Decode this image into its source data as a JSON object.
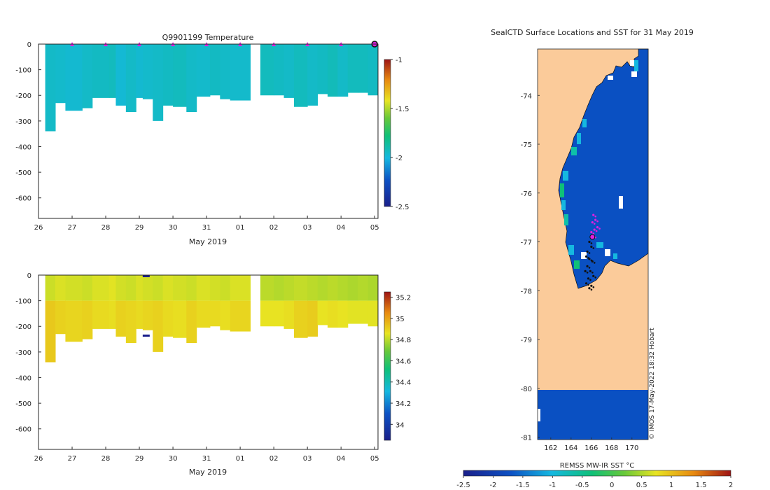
{
  "chart_data": [
    {
      "type": "heatmap",
      "title": "Q9901199  Temperature",
      "xlabel": "May 2019",
      "ylabel": "",
      "xlim": [
        26,
        36.1
      ],
      "ylim": [
        -680,
        0
      ],
      "xtick_labels": [
        "26",
        "27",
        "28",
        "29",
        "30",
        "31",
        "01",
        "02",
        "03",
        "04",
        "05"
      ],
      "ytick_values": [
        0,
        -100,
        -200,
        -300,
        -400,
        -500,
        -600
      ],
      "ytick_labels": [
        "0",
        "-100",
        "-200",
        "-300",
        "-400",
        "-500",
        "-600"
      ],
      "colorbar_range": [
        -2.5,
        -1
      ],
      "colorbar_ticks": [
        -1,
        -1.5,
        -2,
        -2.5
      ],
      "colorbar_tick_labels": [
        "-1",
        "-1.5",
        "-2",
        "-2.5"
      ],
      "surface_markers_day": [
        27,
        28,
        29,
        30,
        31,
        32,
        33,
        34,
        35
      ],
      "last_position_day": 36,
      "profiles": {
        "t": [
          26.2,
          26.5,
          26.8,
          27.3,
          27.6,
          28.1,
          28.3,
          28.6,
          28.9,
          29.1,
          29.4,
          29.7,
          30.0,
          30.4,
          30.7,
          31.1,
          31.4,
          31.7,
          32.3,
          32.6,
          33.0,
          33.3,
          33.6,
          34.0,
          34.3,
          34.6,
          34.9,
          35.2,
          35.5,
          35.8
        ],
        "depth": [
          340,
          230,
          260,
          250,
          210,
          210,
          240,
          265,
          210,
          215,
          300,
          240,
          245,
          265,
          205,
          200,
          215,
          220,
          0,
          200,
          200,
          210,
          245,
          240,
          195,
          205,
          205,
          190,
          190,
          200
        ],
        "value": [
          -1.95,
          -1.96,
          -1.97,
          -1.95,
          -1.94,
          -1.93,
          -1.98,
          -1.95,
          -1.97,
          -1.96,
          -1.95,
          -1.94,
          -1.93,
          -1.95,
          -1.96,
          -1.94,
          -1.95,
          -1.96,
          null,
          -1.93,
          -1.94,
          -1.95,
          -1.93,
          -1.95,
          -1.94,
          -1.92,
          -1.95,
          -1.93,
          -1.93,
          -1.94
        ]
      }
    },
    {
      "type": "heatmap",
      "title": "",
      "xlabel": "May 2019",
      "ylabel": "",
      "xlim": [
        26,
        36.1
      ],
      "ylim": [
        -680,
        0
      ],
      "xtick_labels": [
        "26",
        "27",
        "28",
        "29",
        "30",
        "31",
        "01",
        "02",
        "03",
        "04",
        "05"
      ],
      "ytick_values": [
        0,
        -100,
        -200,
        -300,
        -400,
        -500,
        -600
      ],
      "ytick_labels": [
        "0",
        "-100",
        "-200",
        "-300",
        "-400",
        "-500",
        "-600"
      ],
      "colorbar_range": [
        33.85,
        35.25
      ],
      "colorbar_ticks": [
        35.2,
        35,
        34.8,
        34.6,
        34.4,
        34.2,
        34
      ],
      "colorbar_tick_labels": [
        "35.2",
        "35",
        "34.8",
        "34.6",
        "34.4",
        "34.2",
        "34"
      ],
      "profiles": {
        "t": [
          26.2,
          26.5,
          26.8,
          27.3,
          27.6,
          28.1,
          28.3,
          28.6,
          28.9,
          29.1,
          29.4,
          29.7,
          30.0,
          30.4,
          30.7,
          31.1,
          31.4,
          31.7,
          32.3,
          32.6,
          33.0,
          33.3,
          33.6,
          34.0,
          34.3,
          34.6,
          34.9,
          35.2,
          35.5,
          35.8
        ],
        "depth": [
          340,
          230,
          260,
          250,
          210,
          210,
          240,
          265,
          210,
          215,
          300,
          240,
          245,
          265,
          205,
          200,
          215,
          220,
          0,
          200,
          200,
          210,
          245,
          240,
          195,
          205,
          205,
          190,
          190,
          200
        ],
        "surface": [
          34.82,
          34.84,
          34.83,
          34.82,
          34.84,
          34.85,
          34.83,
          34.82,
          34.84,
          34.83,
          34.82,
          34.84,
          34.83,
          34.82,
          34.84,
          34.83,
          34.82,
          34.84,
          null,
          34.8,
          34.79,
          34.8,
          34.81,
          34.8,
          34.79,
          34.8,
          34.79,
          34.78,
          34.79,
          34.78
        ],
        "deep": [
          34.92,
          34.9,
          34.89,
          34.9,
          34.88,
          34.87,
          34.9,
          34.89,
          34.88,
          34.89,
          34.9,
          34.88,
          34.87,
          34.9,
          34.88,
          34.88,
          34.87,
          34.89,
          null,
          34.86,
          34.86,
          34.87,
          34.9,
          34.91,
          34.86,
          34.87,
          34.86,
          34.85,
          34.85,
          34.85
        ]
      }
    },
    {
      "type": "heatmap",
      "title": "SealCTD Surface Locations and SST for 31 May 2019",
      "xlabel": "REMSS MW-IR SST °C",
      "ylabel": "",
      "xlim": [
        160.7,
        171.6
      ],
      "ylim": [
        -81.05,
        -73.05
      ],
      "xtick_labels": [
        "162",
        "164",
        "166",
        "168",
        "170"
      ],
      "ytick_labels": [
        "-74",
        "-75",
        "-76",
        "-77",
        "-78",
        "-79",
        "-80",
        "-81"
      ],
      "colorbar_range": [
        -2.5,
        2
      ],
      "colorbar_tick_labels": [
        "-2.5",
        "-2",
        "-1.5",
        "-1",
        "-0.5",
        "0",
        "0.5",
        "1",
        "1.5",
        "2"
      ],
      "credit": "© IMOS 17-May-2022 18:32 Hobart",
      "track_points": [
        [
          166.2,
          -76.45
        ],
        [
          166.1,
          -76.6
        ],
        [
          166.4,
          -76.55
        ],
        [
          166.6,
          -76.7
        ],
        [
          166.3,
          -76.75
        ],
        [
          166.0,
          -76.8
        ],
        [
          166.2,
          -76.88
        ],
        [
          165.8,
          -77.0
        ],
        [
          166.0,
          -77.1
        ],
        [
          165.6,
          -77.2
        ],
        [
          165.5,
          -77.3
        ],
        [
          165.8,
          -77.35
        ],
        [
          166.1,
          -77.4
        ],
        [
          165.6,
          -77.5
        ],
        [
          165.4,
          -77.6
        ],
        [
          165.9,
          -77.6
        ],
        [
          166.2,
          -77.7
        ],
        [
          165.7,
          -77.75
        ],
        [
          165.5,
          -77.85
        ],
        [
          166.0,
          -77.9
        ],
        [
          165.8,
          -77.95
        ]
      ],
      "latest_position": [
        166.1,
        -76.9
      ]
    }
  ]
}
